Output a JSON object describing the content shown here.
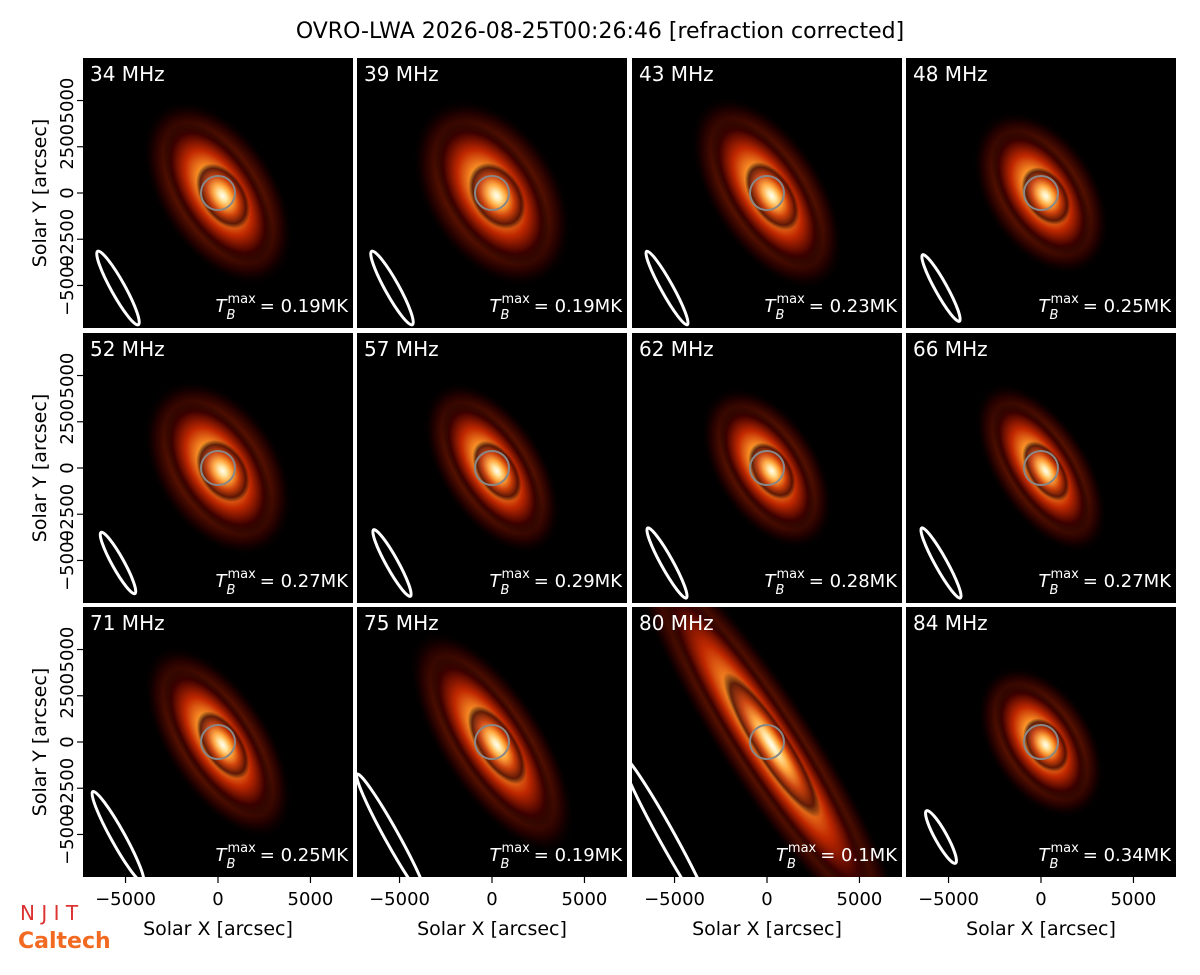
{
  "title": "OVRO-LWA 2026-08-25T00:26:46 [refraction corrected]",
  "logos": [
    "N J I T",
    "Caltech"
  ],
  "axes": {
    "xlabel": "Solar X [arcsec]",
    "ylabel": "Solar Y [arcsec]",
    "xlim": [
      -7300,
      7300
    ],
    "ylim": [
      -7300,
      7300
    ],
    "xticks": [
      {
        "value": -5000,
        "label": "−5000"
      },
      0,
      5000
    ],
    "yticks": [
      {
        "value": -5000,
        "label": "−5000"
      },
      {
        "value": -2500,
        "label": "−2500"
      },
      0,
      2500,
      5000
    ]
  },
  "chart_data": [
    {
      "type": "image",
      "label": "34 MHz",
      "annotation": {
        "symbol": "T",
        "sub": "B",
        "sup": "max",
        "text": "= 0.19MK"
      }
    },
    {
      "type": "image",
      "label": "39 MHz",
      "annotation": {
        "symbol": "T",
        "sub": "B",
        "sup": "max",
        "text": "= 0.19MK"
      }
    },
    {
      "type": "image",
      "label": "43 MHz",
      "annotation": {
        "symbol": "T",
        "sub": "B",
        "sup": "max",
        "text": "= 0.23MK"
      }
    },
    {
      "type": "image",
      "label": "48 MHz",
      "annotation": {
        "symbol": "T",
        "sub": "B",
        "sup": "max",
        "text": "= 0.25MK"
      }
    },
    {
      "type": "image",
      "label": "52 MHz",
      "annotation": {
        "symbol": "T",
        "sub": "B",
        "sup": "max",
        "text": "= 0.27MK"
      }
    },
    {
      "type": "image",
      "label": "57 MHz",
      "annotation": {
        "symbol": "T",
        "sub": "B",
        "sup": "max",
        "text": "= 0.29MK"
      }
    },
    {
      "type": "image",
      "label": "62 MHz",
      "annotation": {
        "symbol": "T",
        "sub": "B",
        "sup": "max",
        "text": "= 0.28MK"
      }
    },
    {
      "type": "image",
      "label": "66 MHz",
      "annotation": {
        "symbol": "T",
        "sub": "B",
        "sup": "max",
        "text": "= 0.27MK"
      }
    },
    {
      "type": "image",
      "label": "71 MHz",
      "annotation": {
        "symbol": "T",
        "sub": "B",
        "sup": "max",
        "text": "= 0.25MK"
      }
    },
    {
      "type": "image",
      "label": "75 MHz",
      "annotation": {
        "symbol": "T",
        "sub": "B",
        "sup": "max",
        "text": "= 0.19MK"
      }
    },
    {
      "type": "image",
      "label": "80 MHz",
      "annotation": {
        "symbol": "T",
        "sub": "B",
        "sup": "max",
        "text": "= 0.1MK"
      }
    },
    {
      "type": "image",
      "label": "84 MHz",
      "annotation": {
        "symbol": "T",
        "sub": "B",
        "sup": "max",
        "text": "= 0.34MK"
      }
    }
  ]
}
